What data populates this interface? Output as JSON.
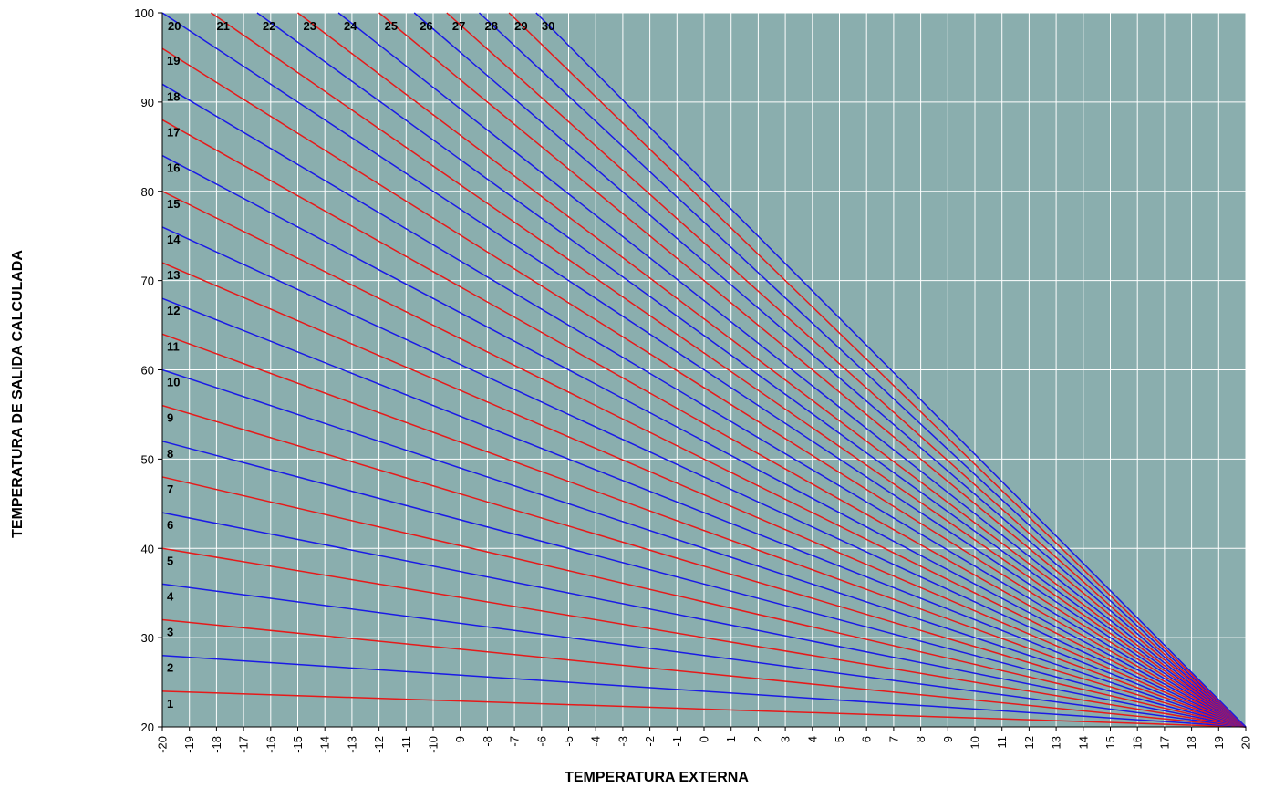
{
  "chart_data": {
    "type": "line",
    "title": "",
    "xlabel": "TEMPERATURA EXTERNA",
    "ylabel": "TEMPERATURA DE SALIDA CALCULADA",
    "xlim": [
      -20,
      20
    ],
    "ylim": [
      20,
      100
    ],
    "x_ticks": [
      -20,
      -19,
      -18,
      -17,
      -16,
      -15,
      -14,
      -13,
      -12,
      -11,
      -10,
      -9,
      -8,
      -7,
      -6,
      -5,
      -4,
      -3,
      -2,
      -1,
      0,
      1,
      2,
      3,
      4,
      5,
      6,
      7,
      8,
      9,
      10,
      11,
      12,
      13,
      14,
      15,
      16,
      17,
      18,
      19,
      20
    ],
    "y_ticks": [
      20,
      30,
      40,
      50,
      60,
      70,
      80,
      90,
      100
    ],
    "grid": true,
    "legend": "none",
    "colors": {
      "plot_background": "#8aaeae",
      "grid": "#ffffff",
      "odd_curves": "#e61a1a",
      "even_curves": "#1a1ae6",
      "axis": "#000000"
    },
    "series": [
      {
        "name": "1",
        "x": [
          -20,
          20
        ],
        "y": [
          24,
          20
        ]
      },
      {
        "name": "2",
        "x": [
          -20,
          20
        ],
        "y": [
          28,
          20
        ]
      },
      {
        "name": "3",
        "x": [
          -20,
          20
        ],
        "y": [
          32,
          20
        ]
      },
      {
        "name": "4",
        "x": [
          -20,
          20
        ],
        "y": [
          36,
          20
        ]
      },
      {
        "name": "5",
        "x": [
          -20,
          20
        ],
        "y": [
          40,
          20
        ]
      },
      {
        "name": "6",
        "x": [
          -20,
          20
        ],
        "y": [
          44,
          20
        ]
      },
      {
        "name": "7",
        "x": [
          -20,
          20
        ],
        "y": [
          48,
          20
        ]
      },
      {
        "name": "8",
        "x": [
          -20,
          20
        ],
        "y": [
          52,
          20
        ]
      },
      {
        "name": "9",
        "x": [
          -20,
          20
        ],
        "y": [
          56,
          20
        ]
      },
      {
        "name": "10",
        "x": [
          -20,
          20
        ],
        "y": [
          60,
          20
        ]
      },
      {
        "name": "11",
        "x": [
          -20,
          20
        ],
        "y": [
          64,
          20
        ]
      },
      {
        "name": "12",
        "x": [
          -20,
          20
        ],
        "y": [
          68,
          20
        ]
      },
      {
        "name": "13",
        "x": [
          -20,
          20
        ],
        "y": [
          72,
          20
        ]
      },
      {
        "name": "14",
        "x": [
          -20,
          20
        ],
        "y": [
          76,
          20
        ]
      },
      {
        "name": "15",
        "x": [
          -20,
          20
        ],
        "y": [
          80,
          20
        ]
      },
      {
        "name": "16",
        "x": [
          -20,
          20
        ],
        "y": [
          84,
          20
        ]
      },
      {
        "name": "17",
        "x": [
          -20,
          20
        ],
        "y": [
          88,
          20
        ]
      },
      {
        "name": "18",
        "x": [
          -20,
          20
        ],
        "y": [
          92,
          20
        ]
      },
      {
        "name": "19",
        "x": [
          -20,
          20
        ],
        "y": [
          96,
          20
        ]
      },
      {
        "name": "20",
        "x": [
          -20,
          20
        ],
        "y": [
          100,
          20
        ]
      },
      {
        "name": "21",
        "x": [
          -18.2,
          20
        ],
        "y": [
          100,
          20
        ]
      },
      {
        "name": "22",
        "x": [
          -16.5,
          20
        ],
        "y": [
          100,
          20
        ]
      },
      {
        "name": "23",
        "x": [
          -15.0,
          20
        ],
        "y": [
          100,
          20
        ]
      },
      {
        "name": "24",
        "x": [
          -13.5,
          20
        ],
        "y": [
          100,
          20
        ]
      },
      {
        "name": "25",
        "x": [
          -12.0,
          20
        ],
        "y": [
          100,
          20
        ]
      },
      {
        "name": "26",
        "x": [
          -10.7,
          20
        ],
        "y": [
          100,
          20
        ]
      },
      {
        "name": "27",
        "x": [
          -9.5,
          20
        ],
        "y": [
          100,
          20
        ]
      },
      {
        "name": "28",
        "x": [
          -8.3,
          20
        ],
        "y": [
          100,
          20
        ]
      },
      {
        "name": "29",
        "x": [
          -7.2,
          20
        ],
        "y": [
          100,
          20
        ]
      },
      {
        "name": "30",
        "x": [
          -6.2,
          20
        ],
        "y": [
          100,
          20
        ]
      }
    ]
  }
}
